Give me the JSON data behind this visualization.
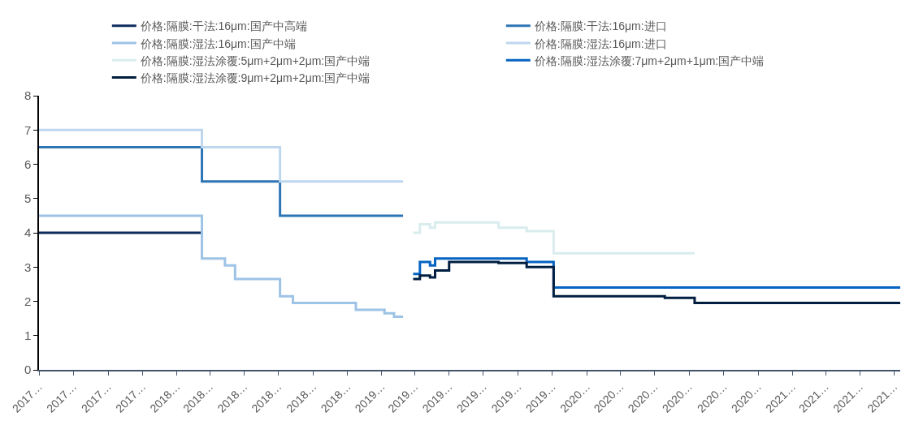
{
  "chart_data": {
    "type": "step",
    "series": [
      {
        "name": "价格:隔膜:干法:16μm:国产中高端",
        "color": "#0e2b5c",
        "x": [
          "2017-05-01",
          "2018-02-14"
        ],
        "values": [
          4.0,
          4.0
        ]
      },
      {
        "name": "价格:隔膜:干法:16μm:进口",
        "color": "#2e75b6",
        "x": [
          "2017-05-01",
          "2018-02-15",
          "2018-07-04",
          "2019-02-08"
        ],
        "values": [
          6.5,
          5.5,
          4.5,
          4.5
        ]
      },
      {
        "name": "价格:隔膜:湿法:16μm:国产中端",
        "color": "#9dc3e6",
        "x": [
          "2017-05-01",
          "2018-02-15",
          "2018-03-28",
          "2018-04-15",
          "2018-07-04",
          "2018-07-27",
          "2018-11-16",
          "2019-01-06",
          "2019-01-23",
          "2019-02-08"
        ],
        "values": [
          4.5,
          3.25,
          3.05,
          2.65,
          2.15,
          1.95,
          1.75,
          1.65,
          1.55,
          1.55
        ]
      },
      {
        "name": "价格:隔膜:湿法:16μm:进口",
        "color": "#bdd7ee",
        "x": [
          "2017-05-01",
          "2018-02-15",
          "2018-07-04",
          "2019-02-08"
        ],
        "values": [
          7.0,
          6.5,
          5.5,
          5.5
        ]
      },
      {
        "name": "价格:隔膜:湿法涂覆:5μm+2μm+2μm:国产中端",
        "color": "#d9ecee",
        "x": [
          "2019-02-26",
          "2019-03-10",
          "2019-03-28",
          "2019-04-06",
          "2019-07-28",
          "2019-09-16",
          "2019-11-03",
          "2020-07-11"
        ],
        "values": [
          4.0,
          4.25,
          4.15,
          4.3,
          4.15,
          4.05,
          3.4,
          3.4
        ]
      },
      {
        "name": "价格:隔膜:湿法涂覆:7μm+2μm+1μm:国产中端",
        "color": "#0563c1",
        "x": [
          "2019-02-26",
          "2019-03-10",
          "2019-03-28",
          "2019-04-06",
          "2019-09-16",
          "2019-11-03",
          "2021-07-12"
        ],
        "values": [
          2.8,
          3.15,
          3.05,
          3.25,
          3.15,
          2.4,
          2.4
        ]
      },
      {
        "name": "价格:隔膜:湿法涂覆:9μm+2μm+2μm:国产中端",
        "color": "#011e41",
        "x": [
          "2019-02-26",
          "2019-03-10",
          "2019-03-28",
          "2019-04-06",
          "2019-05-01",
          "2019-07-28",
          "2019-09-16",
          "2019-11-03",
          "2020-05-19",
          "2020-07-11",
          "2021-07-12"
        ],
        "values": [
          2.65,
          2.75,
          2.7,
          2.9,
          3.15,
          3.12,
          3.0,
          2.15,
          2.1,
          1.95,
          1.95
        ]
      }
    ],
    "xlim": [
      "2017-05-01",
      "2021-07-12"
    ],
    "xticks": [
      {
        "value": "2017-05-01",
        "label": "2017…"
      },
      {
        "value": "2017-07-01",
        "label": "2017…"
      },
      {
        "value": "2017-09-01",
        "label": "2017…"
      },
      {
        "value": "2017-11-01",
        "label": "2017…"
      },
      {
        "value": "2018-01-01",
        "label": "2018…"
      },
      {
        "value": "2018-03-01",
        "label": "2018…"
      },
      {
        "value": "2018-05-01",
        "label": "2018…"
      },
      {
        "value": "2018-07-01",
        "label": "2018…"
      },
      {
        "value": "2018-09-01",
        "label": "2018…"
      },
      {
        "value": "2018-11-01",
        "label": "2018…"
      },
      {
        "value": "2019-01-01",
        "label": "2019…"
      },
      {
        "value": "2019-03-01",
        "label": "2019…"
      },
      {
        "value": "2019-05-01",
        "label": "2019…"
      },
      {
        "value": "2019-07-01",
        "label": "2019…"
      },
      {
        "value": "2019-09-01",
        "label": "2019…"
      },
      {
        "value": "2019-11-01",
        "label": "2019…"
      },
      {
        "value": "2020-01-01",
        "label": "2020…"
      },
      {
        "value": "2020-03-01",
        "label": "2020…"
      },
      {
        "value": "2020-05-01",
        "label": "2020…"
      },
      {
        "value": "2020-07-01",
        "label": "2020…"
      },
      {
        "value": "2020-09-01",
        "label": "2020…"
      },
      {
        "value": "2020-11-01",
        "label": "2020…"
      },
      {
        "value": "2021-01-01",
        "label": "2021…"
      },
      {
        "value": "2021-03-01",
        "label": "2021…"
      },
      {
        "value": "2021-05-01",
        "label": "2021…"
      },
      {
        "value": "2021-07-01",
        "label": "2021…"
      }
    ],
    "ylim": [
      0,
      8
    ],
    "yticks": [
      0,
      1,
      2,
      3,
      4,
      5,
      6,
      7,
      8
    ],
    "legend": "top",
    "marker": "none",
    "line_style": "solid"
  }
}
